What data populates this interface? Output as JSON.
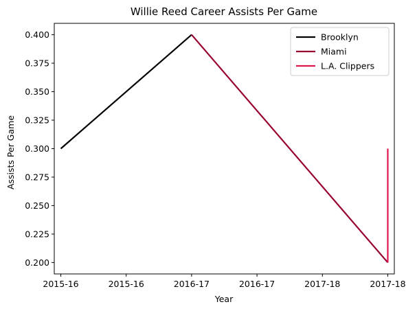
{
  "chart_data": {
    "type": "line",
    "title": "Willie Reed Career Assists Per Game",
    "xlabel": "Year",
    "ylabel": "Assists Per Game",
    "x_ticks": [
      "2015-16",
      "2015-16",
      "2016-17",
      "2016-17",
      "2017-18",
      "2017-18"
    ],
    "x_tick_values": [
      0,
      0.2,
      0.4,
      0.6,
      0.8,
      1.0
    ],
    "xlim": [
      -0.02,
      1.02
    ],
    "ylim": [
      0.19,
      0.41
    ],
    "y_ticks": [
      0.2,
      0.225,
      0.25,
      0.275,
      0.3,
      0.325,
      0.35,
      0.375,
      0.4
    ],
    "y_tick_labels": [
      "0.200",
      "0.225",
      "0.250",
      "0.275",
      "0.300",
      "0.325",
      "0.350",
      "0.375",
      "0.400"
    ],
    "grid": false,
    "legend_position": "top-right",
    "series": [
      {
        "name": "Brooklyn",
        "color": "#000000",
        "x": [
          0,
          0.4
        ],
        "y": [
          0.3,
          0.4
        ]
      },
      {
        "name": "Miami",
        "color": "#98002E",
        "x": [
          0.4,
          1.0
        ],
        "y": [
          0.4,
          0.2
        ]
      },
      {
        "name": "L.A. Clippers",
        "color": "#E0174F",
        "x": [
          1.0,
          1.0
        ],
        "y": [
          0.2,
          0.3
        ]
      }
    ]
  }
}
